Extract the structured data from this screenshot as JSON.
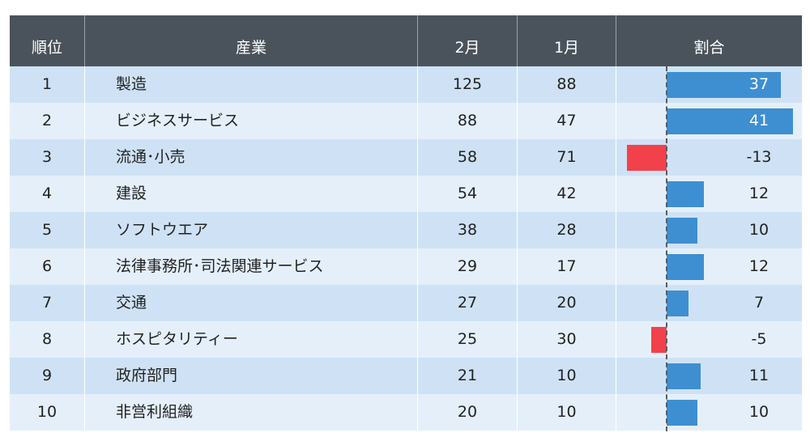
{
  "headers": {
    "rank": "順位",
    "industry": "産業",
    "feb": "2月",
    "jan": "1月",
    "share": "割合"
  },
  "colors": {
    "header_bg": "#4a535c",
    "row_odd": "#cfe2f5",
    "row_even": "#e4effa",
    "positive_bar": "#3d8fd1",
    "negative_bar": "#f2414a"
  },
  "rows": [
    {
      "rank": "1",
      "industry": "製造",
      "feb": "125",
      "jan": "88",
      "share": "37"
    },
    {
      "rank": "2",
      "industry": "ビジネスサービス",
      "feb": "88",
      "jan": "47",
      "share": "41"
    },
    {
      "rank": "3",
      "industry": "流通･小売",
      "feb": "58",
      "jan": "71",
      "share": "-13"
    },
    {
      "rank": "4",
      "industry": "建設",
      "feb": "54",
      "jan": "42",
      "share": "12"
    },
    {
      "rank": "5",
      "industry": "ソフトウエア",
      "feb": "38",
      "jan": "28",
      "share": "10"
    },
    {
      "rank": "6",
      "industry": "法律事務所･司法関連サービス",
      "feb": "29",
      "jan": "17",
      "share": "12"
    },
    {
      "rank": "7",
      "industry": "交通",
      "feb": "27",
      "jan": "20",
      "share": "7"
    },
    {
      "rank": "8",
      "industry": "ホスピタリティー",
      "feb": "25",
      "jan": "30",
      "share": "-5"
    },
    {
      "rank": "9",
      "industry": "政府部門",
      "feb": "21",
      "jan": "10",
      "share": "11"
    },
    {
      "rank": "10",
      "industry": "非営利組織",
      "feb": "20",
      "jan": "10",
      "share": "10"
    }
  ],
  "chart_data": {
    "type": "table",
    "columns": [
      "順位",
      "産業",
      "2月",
      "1月",
      "割合"
    ],
    "categories": [
      "製造",
      "ビジネスサービス",
      "流通･小売",
      "建設",
      "ソフトウエア",
      "法律事務所･司法関連サービス",
      "交通",
      "ホスピタリティー",
      "政府部門",
      "非営利組織"
    ],
    "series": [
      {
        "name": "2月",
        "values": [
          125,
          88,
          58,
          54,
          38,
          29,
          27,
          25,
          21,
          20
        ]
      },
      {
        "name": "1月",
        "values": [
          88,
          47,
          71,
          42,
          28,
          17,
          20,
          30,
          10,
          10
        ]
      },
      {
        "name": "割合",
        "values": [
          37,
          41,
          -13,
          12,
          10,
          12,
          7,
          -5,
          11,
          10
        ]
      }
    ],
    "bar_column": "割合",
    "bar_range": [
      -13,
      41
    ]
  }
}
